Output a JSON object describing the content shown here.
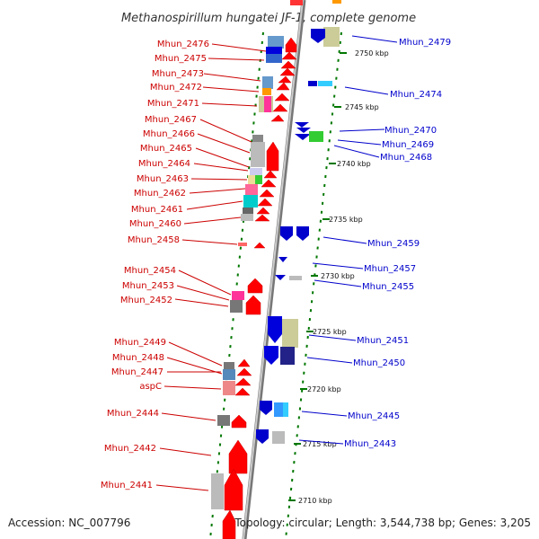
{
  "title": "Methanospirillum hungatei JF-1, complete genome",
  "footer": {
    "accession": "Accession: NC_007796",
    "summary": "Topology: circular; Length: 3,544,738 bp; Genes: 3,205"
  },
  "colors": {
    "left_labels": "#cc0000",
    "right_labels": "#0000cc",
    "backbone": "#999999",
    "tick": "#007700"
  },
  "kbp_labels": [
    "2750 kbp",
    "2745 kbp",
    "2740 kbp",
    "2735 kbp",
    "2730 kbp",
    "2725 kbp",
    "2720 kbp",
    "2715 kbp",
    "2710 kbp"
  ],
  "left_genes": [
    "Mhun_2476",
    "Mhun_2475",
    "Mhun_2473",
    "Mhun_2472",
    "Mhun_2471",
    "Mhun_2467",
    "Mhun_2466",
    "Mhun_2465",
    "Mhun_2464",
    "Mhun_2463",
    "Mhun_2462",
    "Mhun_2461",
    "Mhun_2460",
    "Mhun_2458",
    "Mhun_2454",
    "Mhun_2453",
    "Mhun_2452",
    "Mhun_2449",
    "Mhun_2448",
    "Mhun_2447",
    "aspC",
    "Mhun_2444",
    "Mhun_2442",
    "Mhun_2441"
  ],
  "right_genes": [
    "Mhun_2479",
    "Mhun_2474",
    "Mhun_2470",
    "Mhun_2469",
    "Mhun_2468",
    "Mhun_2459",
    "Mhun_2457",
    "Mhun_2455",
    "Mhun_2451",
    "Mhun_2450",
    "Mhun_2445",
    "Mhun_2443"
  ]
}
